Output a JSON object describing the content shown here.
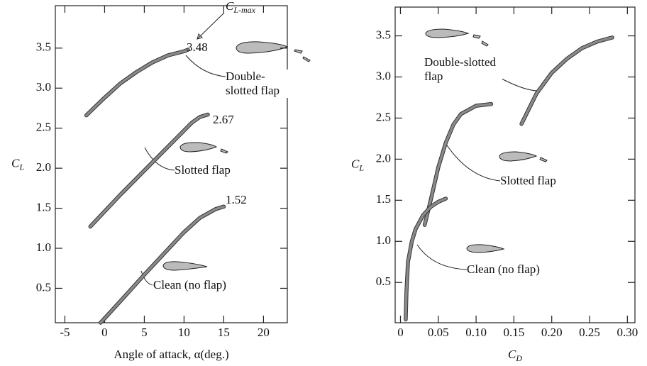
{
  "chart_data": [
    {
      "type": "line",
      "x_label": "Angle of attack, α(deg.)",
      "y_label": "C",
      "y_label_sub": "L",
      "annotation": "C",
      "annotation_sub": "L-max",
      "xlim": [
        -6.2,
        23
      ],
      "ylim": [
        0.07,
        4.03
      ],
      "xticks": [
        -5,
        0,
        5,
        10,
        15,
        20
      ],
      "yticks": [
        0.5,
        {
          "value": 1,
          "label": "1.0"
        },
        1.5,
        {
          "value": 2,
          "label": "2.0"
        },
        2.5,
        {
          "value": 3,
          "label": "3.0"
        },
        3.5
      ],
      "grid": false,
      "series": [
        {
          "name": "Double-slotted flap",
          "color": "#8a8a8a",
          "x": [
            -2.3,
            0,
            2,
            4,
            6,
            8,
            10,
            10.5
          ],
          "values": [
            2.66,
            2.88,
            3.06,
            3.2,
            3.32,
            3.41,
            3.46,
            3.48
          ],
          "value_labels": [
            null,
            null,
            null,
            null,
            null,
            null,
            null,
            "3.48"
          ]
        },
        {
          "name": "Slotted flap",
          "color": "#8a8a8a",
          "x": [
            -1.8,
            2,
            6,
            10,
            11,
            12,
            13
          ],
          "values": [
            1.27,
            1.67,
            2.07,
            2.47,
            2.57,
            2.64,
            2.67
          ],
          "value_labels": [
            null,
            null,
            null,
            null,
            null,
            null,
            "2.67"
          ]
        },
        {
          "name": "Clean (no flap)",
          "color": "#8a8a8a",
          "x": [
            -0.5,
            2,
            5,
            8,
            10,
            12,
            14,
            15
          ],
          "values": [
            0.07,
            0.34,
            0.67,
            0.99,
            1.2,
            1.38,
            1.49,
            1.52
          ],
          "value_labels": [
            null,
            null,
            null,
            null,
            null,
            null,
            null,
            "1.52"
          ]
        }
      ]
    },
    {
      "type": "line",
      "x_label": "C",
      "x_label_sub": "D",
      "y_label": "C",
      "y_label_sub": "L",
      "xlim": [
        -0.007,
        0.31
      ],
      "ylim": [
        0.01,
        3.85
      ],
      "xticks": [
        0,
        0.05,
        {
          "value": 0.1,
          "label": "0.10"
        },
        0.15,
        {
          "value": 0.2,
          "label": "0.20"
        },
        0.25,
        {
          "value": 0.3,
          "label": "0.30"
        }
      ],
      "yticks": [
        0.5,
        {
          "value": 1,
          "label": "1.0"
        },
        1.5,
        {
          "value": 2,
          "label": "2.0"
        },
        2.5,
        {
          "value": 3,
          "label": "3.0"
        },
        3.5
      ],
      "grid": false,
      "series": [
        {
          "name": "Double-slotted flap",
          "color": "#8a8a8a",
          "x": [
            0.16,
            0.18,
            0.2,
            0.22,
            0.24,
            0.26,
            0.28
          ],
          "values": [
            2.43,
            2.8,
            3.05,
            3.22,
            3.35,
            3.43,
            3.48
          ]
        },
        {
          "name": "Slotted flap",
          "color": "#8a8a8a",
          "x": [
            0.032,
            0.04,
            0.05,
            0.06,
            0.07,
            0.08,
            0.1,
            0.12
          ],
          "values": [
            1.2,
            1.5,
            1.9,
            2.2,
            2.42,
            2.55,
            2.65,
            2.67
          ]
        },
        {
          "name": "Clean (no flap)",
          "color": "#8a8a8a",
          "x": [
            0.007,
            0.008,
            0.01,
            0.015,
            0.02,
            0.03,
            0.04,
            0.05,
            0.06
          ],
          "values": [
            0.05,
            0.4,
            0.75,
            1.0,
            1.15,
            1.32,
            1.42,
            1.48,
            1.52
          ]
        }
      ]
    }
  ]
}
